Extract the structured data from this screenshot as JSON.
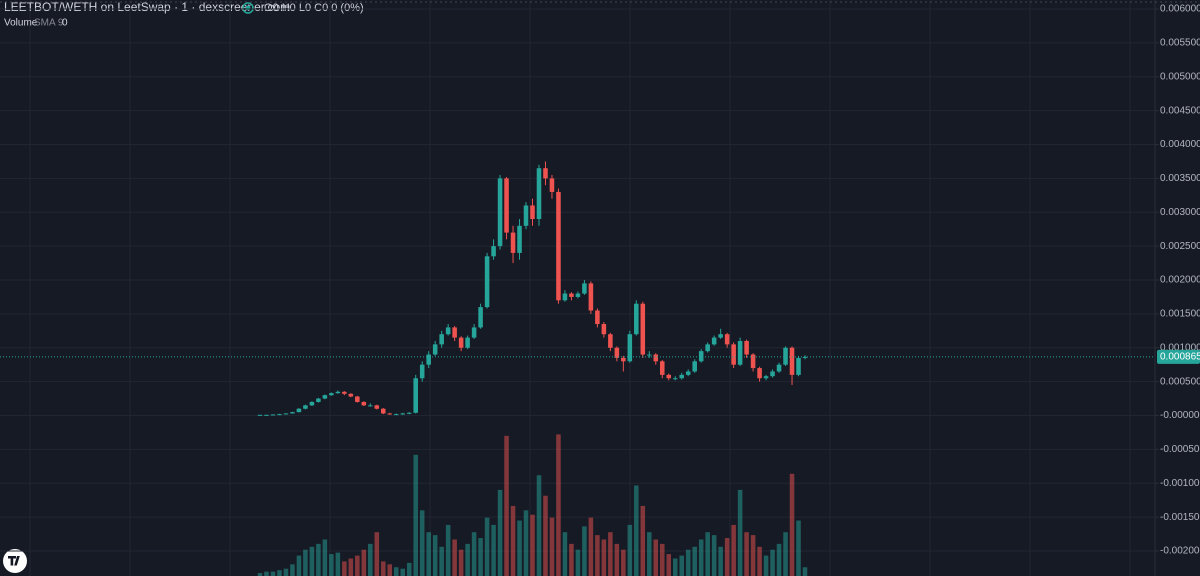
{
  "chart_data": {
    "type": "candlestick",
    "title": "LEETBOT/WETH on LeetSwap · 1 · dexscreener.com",
    "ohlc_legend": "O0 H0 L0 C0 0 (0%)",
    "volume_label": "Volume",
    "volume_sma_label": "SMA 9",
    "volume_sma_value": "0",
    "up_color": "#26a69a",
    "down_color": "#ef5350",
    "grid": true,
    "ylim": [
      -0.002369,
      0.006133
    ],
    "yticks": [
      {
        "value": 0.006,
        "label": "0.006000"
      },
      {
        "value": 0.0055,
        "label": "0.005500"
      },
      {
        "value": 0.005,
        "label": "0.005000"
      },
      {
        "value": 0.0045,
        "label": "0.004500"
      },
      {
        "value": 0.004,
        "label": "0.004000"
      },
      {
        "value": 0.0035,
        "label": "0.003500"
      },
      {
        "value": 0.003,
        "label": "0.003000"
      },
      {
        "value": 0.0025,
        "label": "0.002500"
      },
      {
        "value": 0.002,
        "label": "0.002000"
      },
      {
        "value": 0.0015,
        "label": "0.001500"
      },
      {
        "value": 0.001,
        "label": "0.001000"
      },
      {
        "value": 0.0005,
        "label": "0.000500"
      },
      {
        "value": 0,
        "label": "-0.000000"
      },
      {
        "value": -0.0005,
        "label": "-0.000500"
      },
      {
        "value": -0.001,
        "label": "-0.001000"
      },
      {
        "value": -0.0015,
        "label": "-0.001500"
      },
      {
        "value": -0.002,
        "label": "-0.002000"
      }
    ],
    "last_price": 0.000865,
    "open": [
      5e-06,
      1e-05,
      1e-05,
      1.5e-05,
      2e-05,
      3e-05,
      5e-05,
      0.0001,
      0.00015,
      0.0002,
      0.00025,
      0.0003,
      0.00033,
      0.00035,
      0.00032,
      0.00028,
      0.0002,
      0.00015,
      0.00015,
      0.0001,
      3e-05,
      2e-05,
      2e-05,
      3e-05,
      4e-05,
      0.00055,
      0.00075,
      0.0009,
      0.00105,
      0.0012,
      0.0013,
      0.00115,
      0.001,
      0.00115,
      0.0013,
      0.0016,
      0.00235,
      0.0025,
      0.0035,
      0.0027,
      0.0024,
      0.0028,
      0.0031,
      0.0029,
      0.00365,
      0.0035,
      0.0033,
      0.0017,
      0.0018,
      0.00175,
      0.0018,
      0.00195,
      0.00155,
      0.00135,
      0.0012,
      0.001,
      0.00085,
      0.0008,
      0.0012,
      0.00165,
      0.0009,
      0.0009,
      0.0008,
      0.0006,
      0.00055,
      0.00055,
      0.0006,
      0.00065,
      0.0008,
      0.00095,
      0.00105,
      0.00115,
      0.0012,
      0.00105,
      0.00075,
      0.0011,
      0.0009,
      0.0007,
      0.00055,
      0.00058,
      0.00065,
      0.00075,
      0.001,
      0.0006,
      0.00085
    ],
    "high": [
      1.2e-05,
      1.2e-05,
      1.8e-05,
      2.5e-05,
      3.5e-05,
      5.5e-05,
      0.00011,
      0.00016,
      0.00021,
      0.00026,
      0.00031,
      0.00034,
      0.00037,
      0.00036,
      0.00033,
      0.00029,
      0.00021,
      0.00018,
      0.00016,
      0.00011,
      4e-05,
      3e-05,
      4e-05,
      5e-05,
      0.0006,
      0.0008,
      0.00095,
      0.0011,
      0.00125,
      0.00135,
      0.00132,
      0.00117,
      0.00118,
      0.00135,
      0.00165,
      0.0024,
      0.0026,
      0.00355,
      0.00352,
      0.0028,
      0.0029,
      0.00315,
      0.0032,
      0.0037,
      0.00375,
      0.00355,
      0.00335,
      0.00185,
      0.00182,
      0.00183,
      0.002,
      0.00198,
      0.00158,
      0.00138,
      0.00122,
      0.00102,
      0.00088,
      0.00125,
      0.0017,
      0.00168,
      0.00095,
      0.00092,
      0.00082,
      0.00062,
      0.00058,
      0.00063,
      0.00068,
      0.00083,
      0.00098,
      0.00108,
      0.00118,
      0.00128,
      0.00122,
      0.00108,
      0.00115,
      0.00112,
      0.00092,
      0.00072,
      0.0006,
      0.00068,
      0.00078,
      0.00102,
      0.00102,
      0.00088,
      0.00089
    ],
    "low": [
      3e-06,
      8e-06,
      8e-06,
      1.2e-05,
      1.8e-05,
      2.8e-05,
      4.5e-05,
      9e-05,
      0.00014,
      0.00019,
      0.00024,
      0.00029,
      0.00032,
      0.0003,
      0.00027,
      0.00019,
      0.00014,
      0.00013,
      9e-05,
      2e-05,
      1e-05,
      1e-05,
      1e-05,
      2e-05,
      3e-05,
      0.0005,
      0.0007,
      0.00088,
      0.001,
      0.00118,
      0.0011,
      0.00095,
      0.00098,
      0.00113,
      0.00128,
      0.00158,
      0.0023,
      0.00245,
      0.0026,
      0.00225,
      0.0023,
      0.00275,
      0.0028,
      0.0028,
      0.0034,
      0.0032,
      0.00165,
      0.00168,
      0.0017,
      0.00173,
      0.00178,
      0.0015,
      0.0013,
      0.00115,
      0.00095,
      0.0008,
      0.00065,
      0.00078,
      0.00118,
      0.00085,
      0.00085,
      0.00075,
      0.00055,
      0.00052,
      0.00052,
      0.00053,
      0.00058,
      0.00063,
      0.00078,
      0.00093,
      0.00103,
      0.00113,
      0.001,
      0.0007,
      0.00073,
      0.00085,
      0.00065,
      0.0005,
      0.00052,
      0.00056,
      0.00063,
      0.00073,
      0.00045,
      0.00058,
      0.00083
    ],
    "close": [
      1e-05,
      1e-05,
      1.5e-05,
      2e-05,
      3e-05,
      5e-05,
      0.0001,
      0.00015,
      0.0002,
      0.00025,
      0.0003,
      0.00033,
      0.00035,
      0.00032,
      0.00028,
      0.0002,
      0.00015,
      0.00015,
      0.0001,
      3e-05,
      2e-05,
      2e-05,
      3e-05,
      4e-05,
      0.00055,
      0.00075,
      0.0009,
      0.00105,
      0.0012,
      0.0013,
      0.00115,
      0.001,
      0.00115,
      0.0013,
      0.0016,
      0.00235,
      0.0025,
      0.0035,
      0.0027,
      0.0024,
      0.0028,
      0.0031,
      0.0029,
      0.00365,
      0.0035,
      0.0033,
      0.0017,
      0.0018,
      0.00175,
      0.0018,
      0.00195,
      0.00155,
      0.00135,
      0.0012,
      0.001,
      0.00085,
      0.0008,
      0.0012,
      0.00165,
      0.0009,
      0.0009,
      0.0008,
      0.0006,
      0.00055,
      0.00055,
      0.0006,
      0.00065,
      0.0008,
      0.00095,
      0.00105,
      0.00115,
      0.0012,
      0.00105,
      0.00075,
      0.0011,
      0.0009,
      0.0007,
      0.00055,
      0.00058,
      0.00065,
      0.00075,
      0.001,
      0.0006,
      0.00085,
      0.000865
    ],
    "volume": [
      2,
      3,
      3,
      4,
      5,
      8,
      14,
      18,
      20,
      22,
      25,
      15,
      16,
      10,
      12,
      14,
      18,
      22,
      30,
      10,
      8,
      6,
      5,
      9,
      83,
      45,
      30,
      28,
      20,
      35,
      25,
      18,
      22,
      30,
      26,
      40,
      35,
      59,
      96,
      48,
      38,
      45,
      42,
      69,
      55,
      40,
      97,
      30,
      22,
      18,
      34,
      40,
      28,
      25,
      30,
      22,
      18,
      35,
      62,
      48,
      30,
      25,
      22,
      15,
      12,
      14,
      18,
      20,
      25,
      30,
      28,
      20,
      26,
      35,
      59,
      30,
      28,
      20,
      14,
      18,
      22,
      30,
      70,
      38,
      6
    ],
    "volume_lim": [
      0,
      100
    ]
  }
}
